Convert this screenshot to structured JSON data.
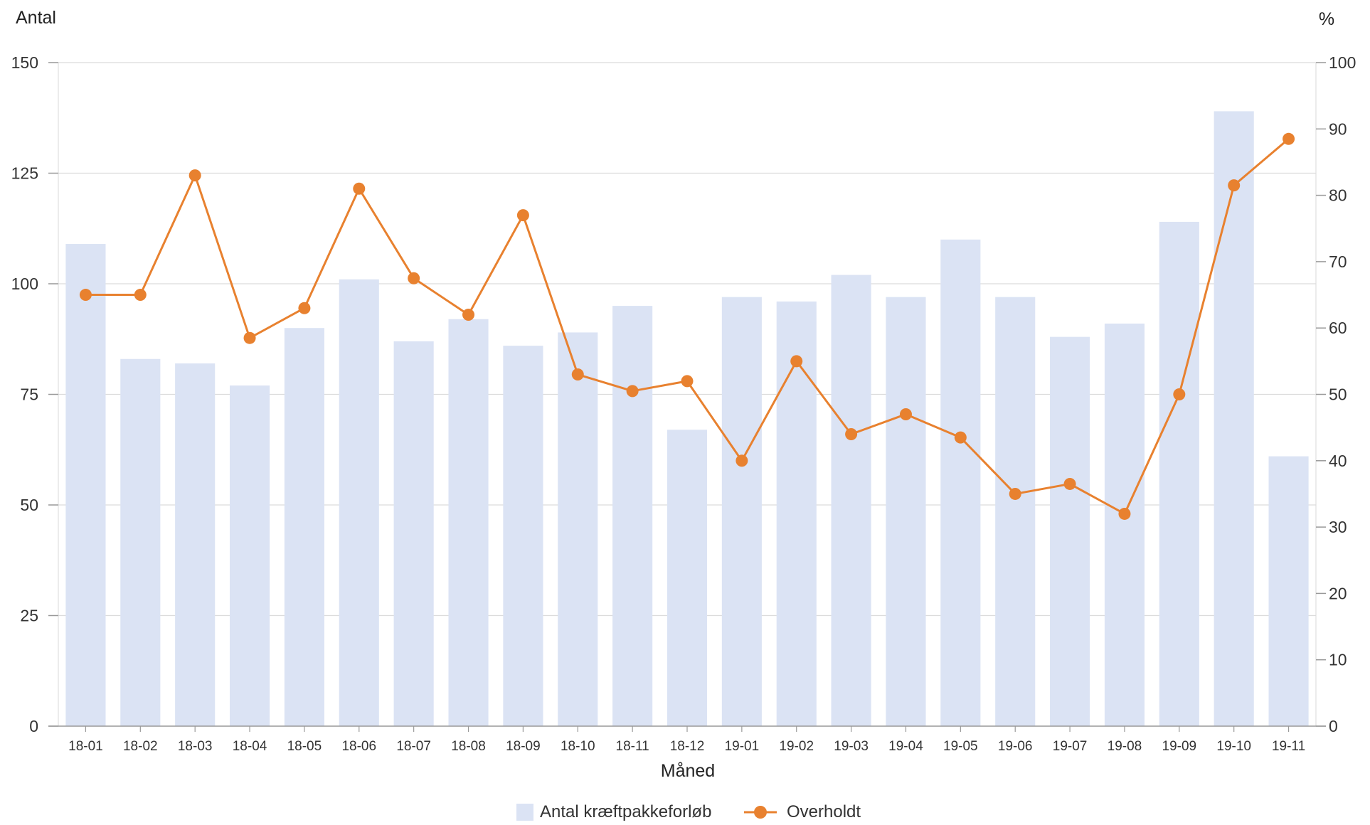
{
  "chart_data": {
    "type": "bar",
    "xlabel": "Måned",
    "ylabel_left": "Antal",
    "ylabel_right": "%",
    "ylim_left": [
      0,
      150
    ],
    "ylim_right": [
      0,
      100
    ],
    "yticks_left": [
      0,
      25,
      50,
      75,
      100,
      125,
      150
    ],
    "yticks_right": [
      0,
      10,
      20,
      30,
      40,
      50,
      60,
      70,
      80,
      90,
      100
    ],
    "grid": true,
    "legend_position": "bottom-center",
    "categories": [
      "18-01",
      "18-02",
      "18-03",
      "18-04",
      "18-05",
      "18-06",
      "18-07",
      "18-08",
      "18-09",
      "18-10",
      "18-11",
      "18-12",
      "19-01",
      "19-02",
      "19-03",
      "19-04",
      "19-05",
      "19-06",
      "19-07",
      "19-08",
      "19-09",
      "19-10",
      "19-11"
    ],
    "series": [
      {
        "name": "Antal kræftpakkeforløb",
        "type": "bar",
        "axis": "left",
        "color": "#dbe3f4",
        "values": [
          109,
          83,
          82,
          77,
          90,
          101,
          87,
          92,
          86,
          89,
          95,
          67,
          97,
          96,
          102,
          97,
          110,
          97,
          88,
          91,
          114,
          139,
          61
        ]
      },
      {
        "name": "Overholdt",
        "type": "line",
        "axis": "right",
        "color": "#e8812f",
        "values": [
          65,
          65,
          83,
          58.5,
          63,
          81,
          67.5,
          62,
          77,
          53,
          50.5,
          52,
          40,
          55,
          44,
          47,
          43.5,
          35,
          36.5,
          32,
          50,
          81.5,
          88.5
        ]
      }
    ]
  }
}
